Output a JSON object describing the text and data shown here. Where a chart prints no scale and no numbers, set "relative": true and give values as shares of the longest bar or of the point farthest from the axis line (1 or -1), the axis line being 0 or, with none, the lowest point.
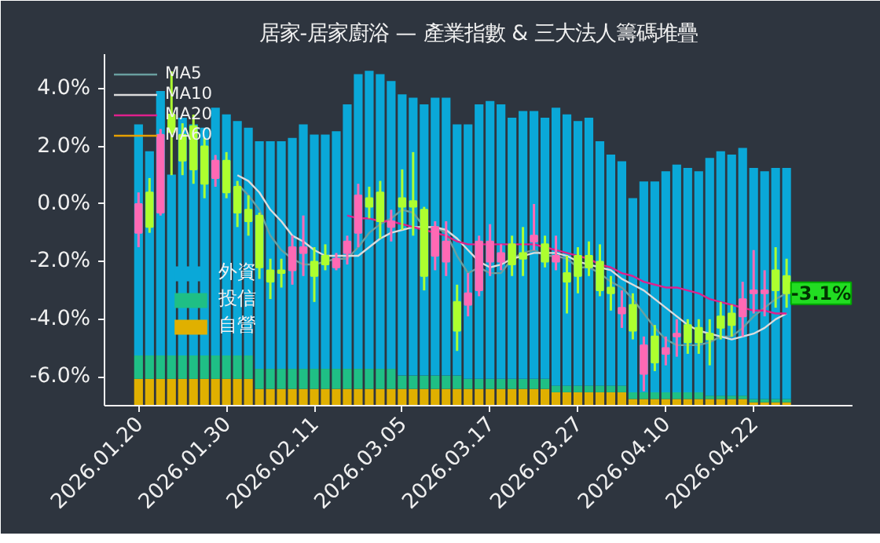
{
  "chart_data": [
    {
      "type": "bar",
      "stacked": true,
      "relative": true,
      "tick_labels": false,
      "legend": "bottom left",
      "categories": [
        "2026.01.20",
        null,
        null,
        null,
        null,
        null,
        null,
        null,
        "2026.01.30",
        null,
        null,
        null,
        null,
        null,
        null,
        null,
        "2026.02.11",
        null,
        null,
        null,
        null,
        null,
        null,
        null,
        "2026.03.05",
        null,
        null,
        null,
        null,
        null,
        null,
        null,
        "2026.03.17",
        null,
        null,
        null,
        null,
        null,
        null,
        null,
        "2026.03.27",
        null,
        null,
        null,
        null,
        null,
        null,
        null,
        "2026.04.10",
        null,
        null,
        null,
        null,
        null,
        null,
        null,
        "2026.04.22",
        null,
        null,
        null
      ],
      "series": [
        {
          "name": "自營",
          "color": "#e0b000",
          "values": [
            0.08,
            0.08,
            0.08,
            0.08,
            0.08,
            0.08,
            0.08,
            0.08,
            0.08,
            0.08,
            0.08,
            0.05,
            0.05,
            0.05,
            0.05,
            0.05,
            0.05,
            0.05,
            0.05,
            0.05,
            0.05,
            0.05,
            0.05,
            0.05,
            0.05,
            0.05,
            0.05,
            0.05,
            0.05,
            0.05,
            0.05,
            0.05,
            0.05,
            0.05,
            0.05,
            0.05,
            0.05,
            0.05,
            0.04,
            0.04,
            0.04,
            0.04,
            0.04,
            0.04,
            0.04,
            0.02,
            0.02,
            0.02,
            0.02,
            0.02,
            0.02,
            0.02,
            0.02,
            0.02,
            0.02,
            0.02,
            0.01,
            0.01,
            0.01,
            0.01
          ]
        },
        {
          "name": "投信",
          "color": "#1fbf85",
          "values": [
            0.07,
            0.07,
            0.07,
            0.07,
            0.07,
            0.07,
            0.07,
            0.07,
            0.07,
            0.07,
            0.07,
            0.06,
            0.06,
            0.06,
            0.06,
            0.06,
            0.06,
            0.06,
            0.06,
            0.06,
            0.06,
            0.06,
            0.06,
            0.06,
            0.04,
            0.04,
            0.04,
            0.04,
            0.04,
            0.04,
            0.03,
            0.03,
            0.03,
            0.03,
            0.03,
            0.03,
            0.03,
            0.03,
            0.02,
            0.02,
            0.02,
            0.02,
            0.02,
            0.02,
            0.02,
            0.02,
            0.02,
            0.02,
            0.02,
            0.02,
            0.02,
            0.02,
            0.01,
            0.01,
            0.01,
            0.01,
            0.01,
            0.01,
            0.01,
            0.01
          ]
        },
        {
          "name": "外資",
          "color": "#0aa8d8",
          "values": [
            0.69,
            0.61,
            0.79,
            0.54,
            0.71,
            0.69,
            0.68,
            0.74,
            0.72,
            0.7,
            0.68,
            0.68,
            0.68,
            0.68,
            0.69,
            0.73,
            0.7,
            0.7,
            0.71,
            0.79,
            0.88,
            0.89,
            0.88,
            0.86,
            0.84,
            0.83,
            0.81,
            0.83,
            0.83,
            0.75,
            0.76,
            0.82,
            0.83,
            0.82,
            0.78,
            0.8,
            0.8,
            0.78,
            0.83,
            0.81,
            0.79,
            0.8,
            0.73,
            0.69,
            0.67,
            0.58,
            0.63,
            0.63,
            0.66,
            0.68,
            0.67,
            0.66,
            0.71,
            0.73,
            0.72,
            0.74,
            0.69,
            0.68,
            0.69,
            0.69
          ]
        }
      ]
    },
    {
      "type": "candlestick",
      "title": "居家-居家廚浴 — 產業指數 & 三大法人籌碼堆疊",
      "categories": [
        "2026.01.20",
        null,
        null,
        null,
        null,
        null,
        null,
        null,
        "2026.01.30",
        null,
        null,
        null,
        null,
        null,
        null,
        null,
        "2026.02.11",
        null,
        null,
        null,
        null,
        null,
        null,
        null,
        "2026.03.05",
        null,
        null,
        null,
        null,
        null,
        null,
        null,
        "2026.03.17",
        null,
        null,
        null,
        null,
        null,
        null,
        null,
        "2026.03.27",
        null,
        null,
        null,
        null,
        null,
        null,
        null,
        "2026.04.10",
        null,
        null,
        null,
        null,
        null,
        null,
        null,
        "2026.04.22",
        null,
        null,
        null
      ],
      "ohlc": [
        [
          -1.0,
          0.4,
          -1.5,
          0.0
        ],
        [
          0.4,
          0.9,
          -1.0,
          -0.8
        ],
        [
          -0.3,
          2.6,
          -0.4,
          2.4
        ],
        [
          3.1,
          4.6,
          1.0,
          2.5
        ],
        [
          2.4,
          2.8,
          1.0,
          1.5
        ],
        [
          2.7,
          3.1,
          0.7,
          1.2
        ],
        [
          2.0,
          2.3,
          0.2,
          0.7
        ],
        [
          0.9,
          1.7,
          0.6,
          1.5
        ],
        [
          1.5,
          1.8,
          0.2,
          0.4
        ],
        [
          0.6,
          0.8,
          -0.8,
          -0.3
        ],
        [
          -0.2,
          0.3,
          -1.1,
          -0.6
        ],
        [
          -0.4,
          -0.3,
          -2.6,
          -2.2
        ],
        [
          -2.3,
          -1.9,
          -3.3,
          -2.7
        ],
        [
          -2.3,
          -1.9,
          -2.9,
          -2.4
        ],
        [
          -2.3,
          -1.1,
          -2.8,
          -1.5
        ],
        [
          -1.7,
          -0.4,
          -2.5,
          -1.5
        ],
        [
          -2.0,
          -1.5,
          -3.4,
          -2.5
        ],
        [
          -1.8,
          -1.4,
          -2.3,
          -2.1
        ],
        [
          -2.2,
          -1.7,
          -2.3,
          -1.9
        ],
        [
          -1.7,
          -1.1,
          -2.1,
          -1.3
        ],
        [
          -1.0,
          0.7,
          -1.5,
          0.3
        ],
        [
          0.2,
          0.6,
          -0.5,
          -0.1
        ],
        [
          0.4,
          0.8,
          -1.2,
          -0.6
        ],
        [
          -0.8,
          -0.2,
          -1.3,
          -0.6
        ],
        [
          0.2,
          1.2,
          -0.9,
          -0.1
        ],
        [
          0.1,
          1.8,
          -1.1,
          -0.1
        ],
        [
          -0.2,
          -0.1,
          -3.0,
          -2.5
        ],
        [
          -1.8,
          -0.6,
          -2.3,
          -0.8
        ],
        [
          -2.0,
          -0.6,
          -2.5,
          -1.3
        ],
        [
          -3.4,
          -2.8,
          -5.1,
          -4.4
        ],
        [
          -3.5,
          -2.4,
          -3.9,
          -3.1
        ],
        [
          -3.0,
          -1.1,
          -3.2,
          -1.3
        ],
        [
          -2.0,
          -0.7,
          -2.5,
          -1.3
        ],
        [
          -2.0,
          -1.4,
          -2.3,
          -1.7
        ],
        [
          -1.4,
          -1.1,
          -2.5,
          -2.1
        ],
        [
          -1.7,
          -0.8,
          -2.5,
          -1.9
        ],
        [
          -1.3,
          0.0,
          -1.6,
          -1.1
        ],
        [
          -1.4,
          -1.1,
          -2.2,
          -2.0
        ],
        [
          -2.0,
          -1.1,
          -2.3,
          -1.8
        ],
        [
          -2.4,
          -1.8,
          -3.8,
          -2.7
        ],
        [
          -1.8,
          -1.5,
          -3.1,
          -2.5
        ],
        [
          -1.8,
          -1.3,
          -2.5,
          -2.2
        ],
        [
          -2.0,
          -1.4,
          -3.2,
          -3.0
        ],
        [
          -2.9,
          -2.5,
          -3.7,
          -3.1
        ],
        [
          -3.8,
          -3.0,
          -4.3,
          -3.6
        ],
        [
          -3.5,
          -3.1,
          -4.7,
          -4.4
        ],
        [
          -5.9,
          -4.6,
          -6.5,
          -4.9
        ],
        [
          -4.6,
          -4.2,
          -5.8,
          -5.5
        ],
        [
          -5.2,
          -4.6,
          -5.6,
          -5.0
        ],
        [
          -4.6,
          -4.0,
          -5.3,
          -4.5
        ],
        [
          -4.2,
          -4.0,
          -5.2,
          -4.8
        ],
        [
          -4.3,
          -4.0,
          -5.2,
          -4.8
        ],
        [
          -4.5,
          -4.0,
          -5.6,
          -4.7
        ],
        [
          -3.9,
          -3.4,
          -4.7,
          -4.3
        ],
        [
          -3.8,
          -3.5,
          -4.6,
          -4.2
        ],
        [
          -3.9,
          -2.7,
          -4.6,
          -3.3
        ],
        [
          -3.1,
          -1.6,
          -3.8,
          -3.0
        ],
        [
          -3.1,
          -2.3,
          -3.9,
          -3.0
        ],
        [
          -2.3,
          -1.5,
          -3.6,
          -3.0
        ],
        [
          -2.5,
          -1.9,
          -3.6,
          -3.1
        ]
      ],
      "colors": [
        "#ff69b4",
        "#adff2f",
        "#ff69b4",
        "#adff2f",
        "#adff2f",
        "#adff2f",
        "#adff2f",
        "#ff69b4",
        "#adff2f",
        "#adff2f",
        "#adff2f",
        "#adff2f",
        "#adff2f",
        "#adff2f",
        "#ff69b4",
        "#ff69b4",
        "#adff2f",
        "#adff2f",
        "#ff69b4",
        "#ff69b4",
        "#ff69b4",
        "#adff2f",
        "#adff2f",
        "#ff69b4",
        "#adff2f",
        "#adff2f",
        "#adff2f",
        "#ff69b4",
        "#ff69b4",
        "#adff2f",
        "#ff69b4",
        "#ff69b4",
        "#ff69b4",
        "#ff69b4",
        "#adff2f",
        "#adff2f",
        "#ff69b4",
        "#adff2f",
        "#ff69b4",
        "#adff2f",
        "#adff2f",
        "#adff2f",
        "#adff2f",
        "#adff2f",
        "#ff69b4",
        "#adff2f",
        "#ff69b4",
        "#adff2f",
        "#ff69b4",
        "#ff69b4",
        "#adff2f",
        "#adff2f",
        "#adff2f",
        "#adff2f",
        "#adff2f",
        "#ff69b4",
        "#ff69b4",
        "#ff69b4",
        "#adff2f",
        "#adff2f"
      ],
      "series": [
        {
          "name": "MA5",
          "type": "line",
          "color": "#6a9fa0",
          "values": [
            null,
            null,
            null,
            null,
            null,
            null,
            null,
            null,
            null,
            0.7,
            0.3,
            -0.2,
            -1.1,
            -1.6,
            -1.9,
            -2.1,
            -2.1,
            -2.0,
            -1.9,
            -1.9,
            -1.5,
            -1.0,
            -0.7,
            -0.5,
            -0.2,
            -0.3,
            -0.8,
            -0.8,
            -1.0,
            -1.8,
            -2.4,
            -2.2,
            -2.4,
            -2.4,
            -1.9,
            -1.7,
            -1.6,
            -1.8,
            -1.8,
            -1.9,
            -2.2,
            -2.2,
            -2.4,
            -2.7,
            -2.9,
            -3.3,
            -3.8,
            -4.3,
            -4.7,
            -4.9,
            -4.9,
            -4.9,
            -4.8,
            -4.6,
            -4.6,
            -4.3,
            -3.9,
            -3.6,
            -3.3,
            -3.1
          ]
        },
        {
          "name": "MA10",
          "type": "line",
          "color": "#dcdcdc",
          "values": [
            null,
            null,
            null,
            null,
            null,
            null,
            null,
            null,
            null,
            1.0,
            0.8,
            0.4,
            -0.2,
            -0.6,
            -1.1,
            -1.3,
            -1.6,
            -1.8,
            -1.8,
            -1.8,
            -1.8,
            -1.5,
            -1.2,
            -1.0,
            -0.9,
            -0.8,
            -0.8,
            -0.8,
            -0.9,
            -1.2,
            -1.6,
            -2.0,
            -2.2,
            -2.1,
            -1.9,
            -1.8,
            -1.7,
            -1.7,
            -1.7,
            -1.8,
            -2.0,
            -2.1,
            -2.2,
            -2.3,
            -2.6,
            -2.8,
            -3.0,
            -3.3,
            -3.6,
            -3.9,
            -4.2,
            -4.4,
            -4.5,
            -4.6,
            -4.7,
            -4.6,
            -4.5,
            -4.3,
            -4.0,
            -3.8
          ]
        },
        {
          "name": "MA20",
          "type": "line",
          "color": "#e0208c",
          "values": [
            null,
            null,
            null,
            null,
            null,
            null,
            null,
            null,
            null,
            null,
            null,
            null,
            null,
            null,
            null,
            null,
            null,
            null,
            null,
            -0.4,
            -0.5,
            -0.5,
            -0.6,
            -0.6,
            -0.7,
            -0.8,
            -0.9,
            -1.0,
            -1.1,
            -1.3,
            -1.4,
            -1.4,
            -1.4,
            -1.4,
            -1.4,
            -1.4,
            -1.4,
            -1.5,
            -1.6,
            -1.7,
            -1.8,
            -1.9,
            -2.1,
            -2.2,
            -2.4,
            -2.5,
            -2.7,
            -2.8,
            -2.9,
            -2.9,
            -3.0,
            -3.1,
            -3.3,
            -3.4,
            -3.5,
            -3.6,
            -3.7,
            -3.7,
            -3.8,
            -3.8
          ]
        },
        {
          "name": "MA60",
          "type": "line",
          "color": "#e6a000",
          "values": [
            null,
            null,
            null,
            null,
            null,
            null,
            null,
            null,
            null,
            null,
            null,
            null,
            null,
            null,
            null,
            null,
            null,
            null,
            null,
            null,
            null,
            null,
            null,
            null,
            null,
            null,
            null,
            null,
            null,
            null,
            null,
            null,
            null,
            null,
            null,
            null,
            null,
            null,
            null,
            null,
            null,
            null,
            null,
            null,
            null,
            null,
            null,
            null,
            null,
            null,
            null,
            null,
            null,
            null,
            null,
            null,
            null,
            null,
            null,
            null
          ]
        }
      ],
      "ylim": [
        -7.0,
        5.2
      ],
      "yticks": [
        {
          "value": -6,
          "label": "-6.0%"
        },
        {
          "value": -4,
          "label": "-4.0%"
        },
        {
          "value": -2,
          "label": "-2.0%"
        },
        {
          "value": 0,
          "label": "0.0%"
        },
        {
          "value": 2,
          "label": "2.0%"
        },
        {
          "value": 4,
          "label": "4.0%"
        }
      ],
      "annotations": [
        {
          "text": "-3.1%",
          "y": -3.1
        }
      ],
      "legend": "top left"
    }
  ]
}
